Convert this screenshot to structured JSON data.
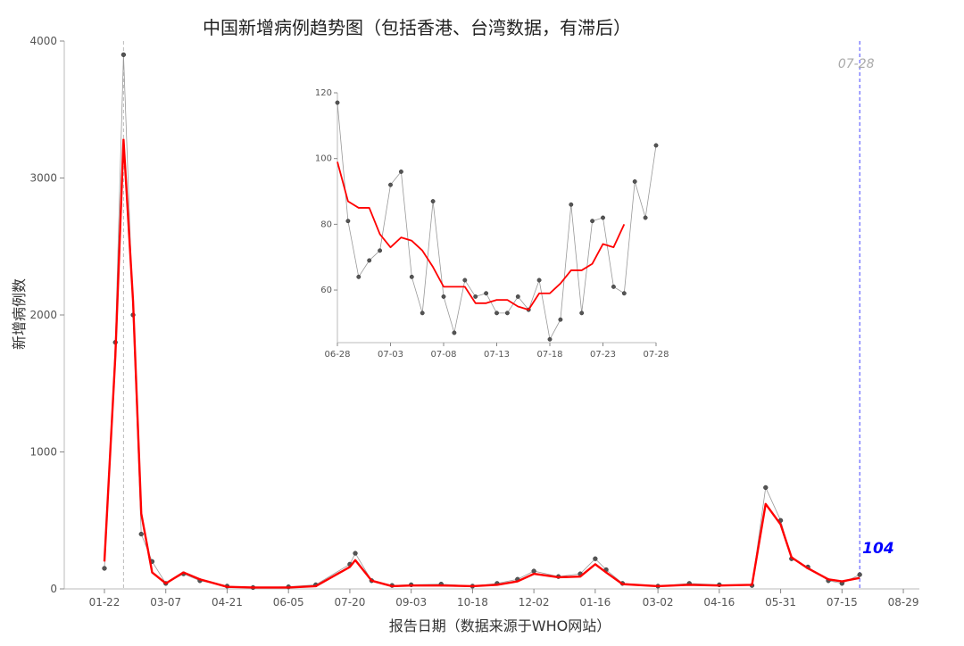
{
  "chart_data": [
    {
      "type": "line",
      "title": "中国新增病例趋势图（包括香港、台湾数据，有滞后）",
      "xlabel": "报告日期（数据来源于WHO网站）",
      "ylabel": "新增病例数",
      "x_ticks": [
        "01-22",
        "03-07",
        "04-21",
        "06-05",
        "07-20",
        "09-03",
        "10-18",
        "12-02",
        "01-16",
        "03-02",
        "04-16",
        "05-31",
        "07-15",
        "08-29"
      ],
      "y_ticks": [
        0,
        1000,
        2000,
        3000,
        4000
      ],
      "ylim": [
        0,
        4000
      ],
      "x": [
        "01-22",
        "01-30",
        "02-05",
        "02-12",
        "02-18",
        "02-26",
        "03-07",
        "03-20",
        "04-01",
        "04-21",
        "05-10",
        "06-05",
        "06-25",
        "07-20",
        "07-24",
        "08-05",
        "08-20",
        "09-03",
        "09-25",
        "10-18",
        "11-05",
        "11-20",
        "12-02",
        "12-20",
        "01-05",
        "01-16",
        "01-24",
        "02-05",
        "03-02",
        "03-25",
        "04-16",
        "05-10",
        "05-20",
        "05-31",
        "06-08",
        "06-20",
        "07-05",
        "07-15",
        "07-28"
      ],
      "series": [
        {
          "values": [
            150,
            1800,
            3900,
            2000,
            400,
            200,
            40,
            110,
            60,
            20,
            10,
            15,
            30,
            180,
            260,
            60,
            25,
            30,
            35,
            20,
            40,
            70,
            130,
            90,
            110,
            220,
            140,
            40,
            20,
            40,
            30,
            25,
            740,
            500,
            220,
            160,
            60,
            40,
            104
          ],
          "style": "points-gray"
        },
        {
          "values": [
            200,
            1700,
            3280,
            2100,
            550,
            120,
            40,
            120,
            70,
            15,
            10,
            10,
            20,
            160,
            210,
            60,
            20,
            25,
            25,
            20,
            30,
            55,
            110,
            85,
            90,
            180,
            120,
            35,
            20,
            30,
            25,
            30,
            620,
            470,
            230,
            150,
            70,
            55,
            80
          ],
          "style": "smoothed-red"
        }
      ],
      "annotations": [
        {
          "text": "07-28",
          "x": "07-28",
          "color": "#aaaaaa"
        },
        {
          "text": "104",
          "x": "07-28",
          "y": 104,
          "color": "#0000ff"
        }
      ],
      "vlines": [
        {
          "x": "02-05",
          "style": "dashed",
          "color": "#bbbbbb"
        },
        {
          "x": "07-28",
          "style": "dashed",
          "color": "#4444ff"
        }
      ],
      "grid": false
    },
    {
      "type": "line",
      "subtype": "inset",
      "x_ticks": [
        "06-28",
        "07-03",
        "07-08",
        "07-13",
        "07-18",
        "07-23",
        "07-28"
      ],
      "y_ticks": [
        60,
        80,
        100,
        120
      ],
      "ylim": [
        44,
        120
      ],
      "x_day_range": [
        0,
        30
      ],
      "points": [
        {
          "d": 0,
          "v": 117
        },
        {
          "d": 1,
          "v": 81
        },
        {
          "d": 2,
          "v": 64
        },
        {
          "d": 3,
          "v": 69
        },
        {
          "d": 4,
          "v": 72
        },
        {
          "d": 5,
          "v": 92
        },
        {
          "d": 6,
          "v": 96
        },
        {
          "d": 7,
          "v": 64
        },
        {
          "d": 8,
          "v": 53
        },
        {
          "d": 9,
          "v": 87
        },
        {
          "d": 10,
          "v": 58
        },
        {
          "d": 11,
          "v": 47
        },
        {
          "d": 12,
          "v": 63
        },
        {
          "d": 13,
          "v": 58
        },
        {
          "d": 14,
          "v": 59
        },
        {
          "d": 15,
          "v": 53
        },
        {
          "d": 16,
          "v": 53
        },
        {
          "d": 17,
          "v": 58
        },
        {
          "d": 18,
          "v": 54
        },
        {
          "d": 19,
          "v": 63
        },
        {
          "d": 20,
          "v": 45
        },
        {
          "d": 21,
          "v": 51
        },
        {
          "d": 22,
          "v": 86
        },
        {
          "d": 23,
          "v": 53
        },
        {
          "d": 24,
          "v": 81
        },
        {
          "d": 25,
          "v": 82
        },
        {
          "d": 26,
          "v": 61
        },
        {
          "d": 27,
          "v": 59
        },
        {
          "d": 28,
          "v": 93
        },
        {
          "d": 29,
          "v": 82
        },
        {
          "d": 30,
          "v": 104
        }
      ],
      "smooth": [
        {
          "d": 0,
          "v": 99
        },
        {
          "d": 1,
          "v": 87
        },
        {
          "d": 2,
          "v": 85
        },
        {
          "d": 3,
          "v": 85
        },
        {
          "d": 4,
          "v": 77
        },
        {
          "d": 5,
          "v": 73
        },
        {
          "d": 6,
          "v": 76
        },
        {
          "d": 7,
          "v": 75
        },
        {
          "d": 8,
          "v": 72
        },
        {
          "d": 9,
          "v": 67
        },
        {
          "d": 10,
          "v": 61
        },
        {
          "d": 11,
          "v": 61
        },
        {
          "d": 12,
          "v": 61
        },
        {
          "d": 13,
          "v": 56
        },
        {
          "d": 14,
          "v": 56
        },
        {
          "d": 15,
          "v": 57
        },
        {
          "d": 16,
          "v": 57
        },
        {
          "d": 17,
          "v": 55
        },
        {
          "d": 18,
          "v": 54
        },
        {
          "d": 19,
          "v": 59
        },
        {
          "d": 20,
          "v": 59
        },
        {
          "d": 21,
          "v": 62
        },
        {
          "d": 22,
          "v": 66
        },
        {
          "d": 23,
          "v": 66
        },
        {
          "d": 24,
          "v": 68
        },
        {
          "d": 25,
          "v": 74
        },
        {
          "d": 26,
          "v": 73
        },
        {
          "d": 27,
          "v": 80
        }
      ]
    }
  ],
  "colors": {
    "points": "#555555",
    "raw_line": "#999999",
    "smooth_line": "#ff0000",
    "highlight_value": "#0000ff",
    "date_annotation": "#aaaaaa"
  }
}
